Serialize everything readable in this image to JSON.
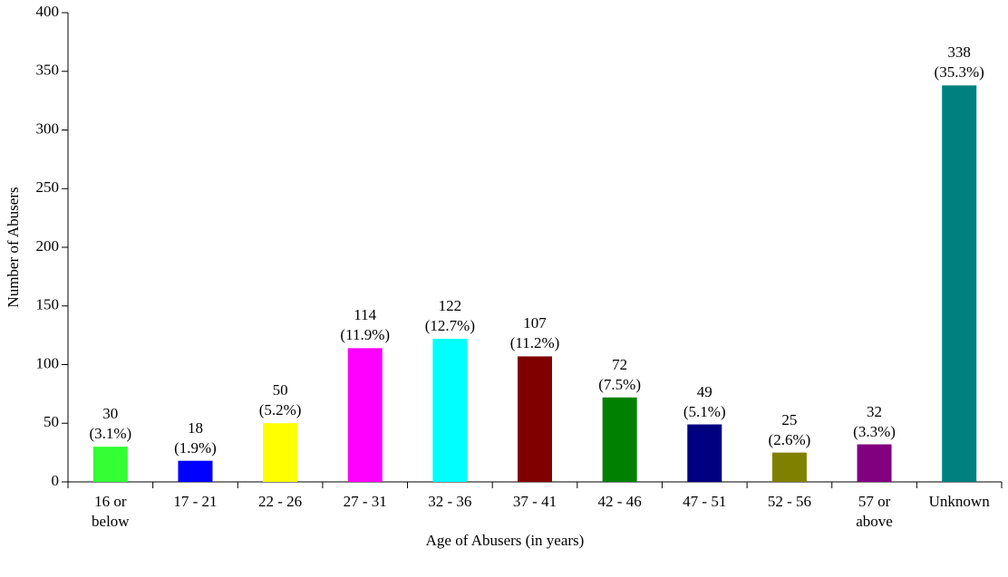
{
  "chart_data": {
    "type": "bar",
    "xlabel": "Age of Abusers (in years)",
    "ylabel": "Number of Abusers",
    "categories": [
      "16 or below",
      "17 - 21",
      "22 - 26",
      "27 - 31",
      "32 - 36",
      "37 - 41",
      "42 - 46",
      "47 - 51",
      "52 - 56",
      "57 or above",
      "Unknown"
    ],
    "values": [
      30,
      18,
      50,
      114,
      122,
      107,
      72,
      49,
      25,
      32,
      338
    ],
    "value_labels": [
      "30 (3.1%)",
      "18 (1.9%)",
      "50 (5.2%)",
      "114 (11.9%)",
      "122 (12.7%)",
      "107 (11.2%)",
      "72 (7.5%)",
      "49 (5.1%)",
      "25 (2.6%)",
      "32 (3.3%)",
      "338 (35.3%)"
    ],
    "colors": [
      "#33ff33",
      "#0000ff",
      "#ffff00",
      "#ff00ff",
      "#00ffff",
      "#800000",
      "#008000",
      "#000080",
      "#808000",
      "#800080",
      "#008080"
    ],
    "ylim": [
      0,
      400
    ],
    "yticks": [
      0,
      50,
      100,
      150,
      200,
      250,
      300,
      350,
      400
    ],
    "grid": false
  }
}
